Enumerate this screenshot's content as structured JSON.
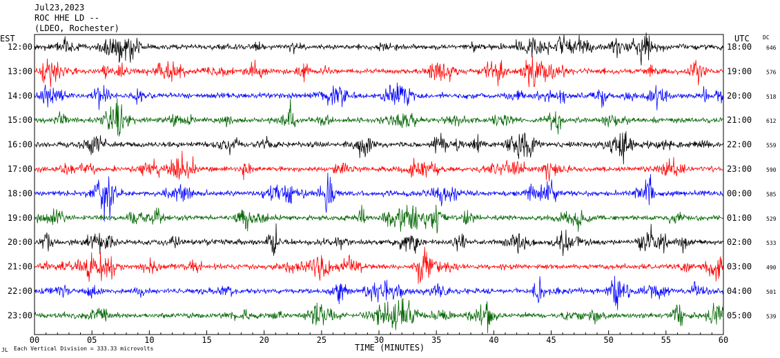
{
  "header": {
    "date": "Jul23,2023",
    "station": "ROC HHE LD --",
    "location": "(LDEO, Rochester)"
  },
  "left_axis_title": "EST",
  "right_axis_title": "UTC",
  "dc_title": "DC",
  "footer": {
    "scale_note": "Each Vertical Division =  333.33 microvolts"
  },
  "chart_data": {
    "type": "line",
    "title": "",
    "xlabel": "TIME (MINUTES)",
    "xlim": [
      0,
      60
    ],
    "x_ticks": [
      "00",
      "05",
      "10",
      "15",
      "20",
      "25",
      "30",
      "35",
      "40",
      "45",
      "50",
      "55",
      "60"
    ],
    "colors": [
      "#000000",
      "#ff0000",
      "#0000ff",
      "#006400"
    ],
    "rows": [
      {
        "est": "12:00",
        "utc": "18:00",
        "dc": "646"
      },
      {
        "est": "13:00",
        "utc": "19:00",
        "dc": "576"
      },
      {
        "est": "14:00",
        "utc": "20:00",
        "dc": "518"
      },
      {
        "est": "15:00",
        "utc": "21:00",
        "dc": "612"
      },
      {
        "est": "16:00",
        "utc": "22:00",
        "dc": "559"
      },
      {
        "est": "17:00",
        "utc": "23:00",
        "dc": "590"
      },
      {
        "est": "18:00",
        "utc": "00:00",
        "dc": "585"
      },
      {
        "est": "19:00",
        "utc": "01:00",
        "dc": "529"
      },
      {
        "est": "20:00",
        "utc": "02:00",
        "dc": "533"
      },
      {
        "est": "21:00",
        "utc": "03:00",
        "dc": "490"
      },
      {
        "est": "22:00",
        "utc": "04:00",
        "dc": "501"
      },
      {
        "est": "23:00",
        "utc": "05:00",
        "dc": "539"
      }
    ]
  }
}
